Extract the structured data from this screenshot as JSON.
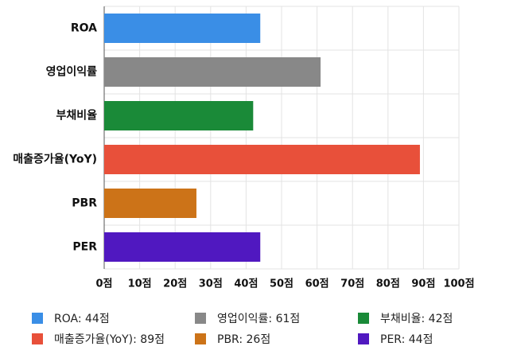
{
  "chart_data": {
    "type": "bar",
    "orientation": "horizontal",
    "categories": [
      "ROA",
      "영업이익률",
      "부채비율",
      "매출증가율(YoY)",
      "PBR",
      "PER"
    ],
    "values": [
      44,
      61,
      42,
      89,
      26,
      44
    ],
    "colors": [
      "#3a8ee6",
      "#888888",
      "#1a8a38",
      "#e8503a",
      "#cc7318",
      "#5018c0"
    ],
    "xlim": [
      0,
      100
    ],
    "xticks": [
      0,
      10,
      20,
      30,
      40,
      50,
      60,
      70,
      80,
      90,
      100
    ],
    "tick_unit": "점",
    "grid": true,
    "legend": {
      "placement": "bottom",
      "entries": [
        "ROA: 44점",
        "영업이익률: 61점",
        "부채비율: 42점",
        "매출증가율(YoY): 89점",
        "PBR: 26점",
        "PER: 44점"
      ]
    }
  }
}
